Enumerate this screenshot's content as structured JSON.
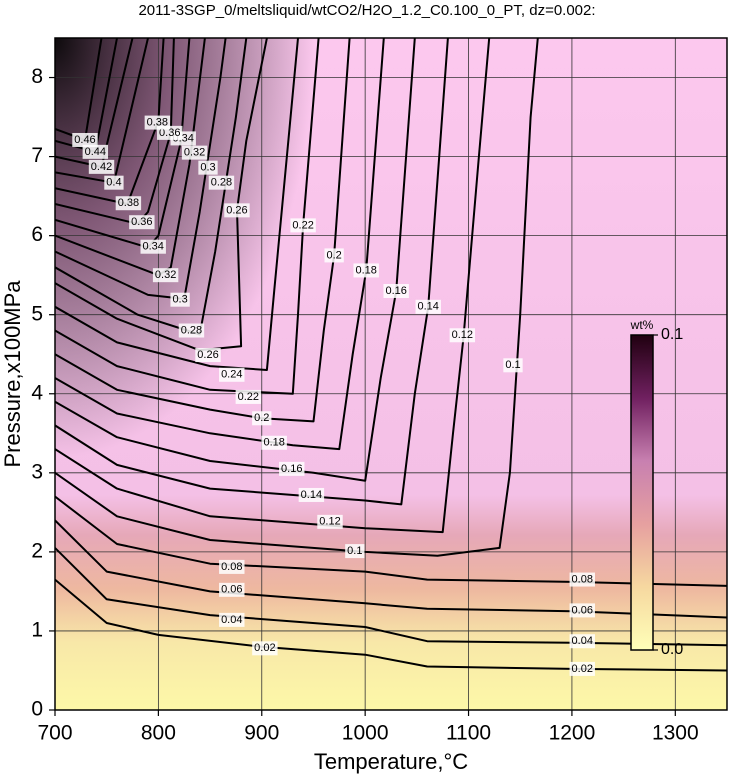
{
  "chart_data": {
    "type": "contour",
    "title": "2011-3SGP_0/meltsliquid/wtCO2/H2O_1.2_C0.100_0_PT, dz=0.002:",
    "xlabel": "Temperature,°C",
    "ylabel": "Pressure,x100MPa",
    "xlim": [
      700,
      1350
    ],
    "ylim": [
      0,
      8.5
    ],
    "xticks": [
      700,
      800,
      900,
      1000,
      1100,
      1200,
      1300
    ],
    "yticks": [
      0,
      1,
      2,
      3,
      4,
      5,
      6,
      7,
      8
    ],
    "grid": true,
    "line_color": "#000000",
    "colorbar": {
      "label": "wt%",
      "lim": [
        0,
        0.1
      ],
      "ticks": [
        {
          "value": 0,
          "label": "0.0"
        },
        {
          "value": 0.1,
          "label": "0.1"
        }
      ],
      "colors": [
        "#ffffb8",
        "#f6d8a0",
        "#e6a0a0",
        "#c880b0",
        "#702060",
        "#200010"
      ]
    },
    "contours": [
      {
        "level": 0.02,
        "x": [
          700,
          750,
          800,
          900,
          1000,
          1060,
          1200,
          1350
        ],
        "y": [
          1.65,
          1.1,
          0.95,
          0.8,
          0.7,
          0.55,
          0.52,
          0.5
        ],
        "label_x": [
          903,
          1210
        ],
        "label_y": [
          0.78,
          0.52
        ]
      },
      {
        "level": 0.04,
        "x": [
          700,
          750,
          850,
          1000,
          1060,
          1200,
          1350
        ],
        "y": [
          2.05,
          1.4,
          1.2,
          1.05,
          0.87,
          0.85,
          0.82
        ],
        "label_x": [
          871,
          1210
        ],
        "label_y": [
          1.14,
          0.87
        ]
      },
      {
        "level": 0.06,
        "x": [
          700,
          750,
          850,
          1000,
          1060,
          1200,
          1350
        ],
        "y": [
          2.4,
          1.75,
          1.5,
          1.35,
          1.28,
          1.25,
          1.17
        ],
        "label_x": [
          871,
          1210
        ],
        "label_y": [
          1.52,
          1.26
        ]
      },
      {
        "level": 0.08,
        "x": [
          700,
          760,
          850,
          1000,
          1060,
          1200,
          1350
        ],
        "y": [
          2.7,
          2.1,
          1.85,
          1.75,
          1.65,
          1.62,
          1.57
        ],
        "label_x": [
          871,
          1210
        ],
        "label_y": [
          1.81,
          1.65
        ]
      },
      {
        "level": 0.1,
        "x": [
          700,
          760,
          850,
          1000,
          1070,
          1130,
          1140,
          1150,
          1160,
          1167
        ],
        "y": [
          3.0,
          2.45,
          2.15,
          2.0,
          1.95,
          2.05,
          3.0,
          5.0,
          7.5,
          8.5
        ],
        "label_x": [
          990,
          1143
        ],
        "label_y": [
          2.01,
          4.36
        ]
      },
      {
        "level": 0.12,
        "x": [
          700,
          760,
          850,
          1000,
          1075,
          1085,
          1095,
          1110,
          1120
        ],
        "y": [
          3.3,
          2.8,
          2.45,
          2.3,
          2.25,
          3.5,
          4.7,
          7.0,
          8.5
        ],
        "label_x": [
          966,
          1094
        ],
        "label_y": [
          2.38,
          4.74
        ]
      },
      {
        "level": 0.14,
        "x": [
          700,
          760,
          850,
          1000,
          1035,
          1048,
          1061,
          1080
        ],
        "y": [
          3.6,
          3.1,
          2.8,
          2.65,
          2.6,
          4.0,
          5.1,
          8.5
        ],
        "label_x": [
          948,
          1061
        ],
        "label_y": [
          2.72,
          5.1
        ]
      },
      {
        "level": 0.16,
        "x": [
          700,
          760,
          850,
          950,
          1000,
          1015,
          1030,
          1048
        ],
        "y": [
          3.9,
          3.45,
          3.15,
          3.0,
          2.9,
          4.2,
          5.3,
          8.5
        ],
        "label_x": [
          929,
          1030
        ],
        "label_y": [
          3.05,
          5.3
        ]
      },
      {
        "level": 0.18,
        "x": [
          700,
          760,
          850,
          930,
          975,
          988,
          1001,
          1018
        ],
        "y": [
          4.2,
          3.75,
          3.5,
          3.35,
          3.3,
          4.5,
          5.56,
          8.5
        ],
        "label_x": [
          912,
          1001
        ],
        "label_y": [
          3.38,
          5.56
        ]
      },
      {
        "level": 0.2,
        "x": [
          700,
          760,
          850,
          900,
          950,
          960,
          970,
          985
        ],
        "y": [
          4.5,
          4.05,
          3.8,
          3.69,
          3.65,
          4.8,
          5.75,
          8.5
        ],
        "label_x": [
          900,
          970
        ],
        "label_y": [
          3.69,
          5.75
        ]
      },
      {
        "level": 0.22,
        "x": [
          700,
          760,
          850,
          930,
          935,
          940,
          955
        ],
        "y": [
          4.8,
          4.35,
          4.05,
          4.0,
          5.0,
          6.13,
          8.5
        ],
        "label_x": [
          887,
          940
        ],
        "label_y": [
          3.96,
          6.13
        ]
      },
      {
        "level": 0.24,
        "x": [
          700,
          760,
          850,
          905,
          912,
          920,
          935
        ],
        "y": [
          5.1,
          4.65,
          4.35,
          4.3,
          5.3,
          6.4,
          8.5
        ],
        "label_x": [
          871
        ],
        "label_y": [
          4.24
        ]
      },
      {
        "level": 0.26,
        "x": [
          700,
          760,
          840,
          880,
          876,
          885,
          905
        ],
        "y": [
          5.4,
          4.95,
          4.55,
          4.6,
          6.32,
          7.2,
          8.5
        ],
        "label_x": [
          848,
          876
        ],
        "label_y": [
          4.49,
          6.32
        ]
      },
      {
        "level": 0.28,
        "x": [
          700,
          780,
          840,
          855,
          875,
          885
        ],
        "y": [
          5.6,
          5.0,
          4.75,
          5.8,
          7.5,
          8.5
        ],
        "label_x": [
          832,
          861
        ],
        "label_y": [
          4.8,
          6.67
        ]
      },
      {
        "level": 0.3,
        "x": [
          700,
          790,
          825,
          840,
          860,
          865
        ],
        "y": [
          5.8,
          5.25,
          5.2,
          6.3,
          8.0,
          8.5
        ],
        "label_x": [
          821,
          848
        ],
        "label_y": [
          5.19,
          6.86
        ]
      },
      {
        "level": 0.32,
        "x": [
          700,
          800,
          812,
          830,
          845
        ],
        "y": [
          6.0,
          5.5,
          5.6,
          6.9,
          8.5
        ],
        "label_x": [
          807,
          835
        ],
        "label_y": [
          5.5,
          7.05
        ]
      },
      {
        "level": 0.34,
        "x": [
          700,
          790,
          800,
          822,
          830
        ],
        "y": [
          6.2,
          5.85,
          6.0,
          7.2,
          8.5
        ],
        "label_x": [
          795,
          824
        ],
        "label_y": [
          5.86,
          7.23
        ]
      },
      {
        "level": 0.36,
        "x": [
          700,
          780,
          790,
          812,
          815
        ],
        "y": [
          6.4,
          6.15,
          6.3,
          7.3,
          8.5
        ],
        "label_x": [
          784,
          811
        ],
        "label_y": [
          6.17,
          7.3
        ]
      },
      {
        "level": 0.38,
        "x": [
          700,
          770,
          800,
          805
        ],
        "y": [
          6.6,
          6.4,
          7.45,
          8.5
        ],
        "label_x": [
          771,
          799
        ],
        "label_y": [
          6.41,
          7.43
        ]
      },
      {
        "level": 0.4,
        "x": [
          700,
          757,
          790
        ],
        "y": [
          6.8,
          6.67,
          8.5
        ],
        "label_x": [
          757
        ],
        "label_y": [
          6.67
        ]
      },
      {
        "level": 0.42,
        "x": [
          700,
          745,
          775
        ],
        "y": [
          7.0,
          6.87,
          8.5
        ],
        "label_x": [
          745
        ],
        "label_y": [
          6.87
        ]
      },
      {
        "level": 0.44,
        "x": [
          700,
          739,
          760
        ],
        "y": [
          7.2,
          7.06,
          8.5
        ],
        "label_x": [
          739
        ],
        "label_y": [
          7.06
        ]
      },
      {
        "level": 0.46,
        "x": [
          700,
          729,
          745
        ],
        "y": [
          7.35,
          7.21,
          8.5
        ],
        "label_x": [
          729
        ],
        "label_y": [
          7.21
        ]
      }
    ]
  }
}
